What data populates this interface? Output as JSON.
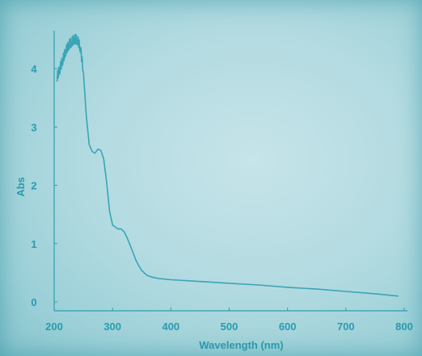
{
  "chart_data": {
    "type": "line",
    "title": "",
    "xlabel": "Wavelength (nm)",
    "ylabel": "Abs",
    "xlim": [
      200,
      800
    ],
    "ylim": [
      0,
      4.6
    ],
    "xticks": [
      200,
      300,
      400,
      500,
      600,
      700,
      800
    ],
    "yticks": [
      0,
      1,
      2,
      3,
      4
    ],
    "grid": false,
    "series": [
      {
        "x": [
          205,
          210,
          215,
          220,
          225,
          230,
          235,
          240,
          245,
          250,
          255,
          260,
          265,
          270,
          275,
          280,
          285,
          290,
          295,
          300,
          305,
          310,
          315,
          320,
          325,
          330,
          335,
          340,
          345,
          350,
          355,
          360,
          370,
          380,
          400,
          450,
          500,
          550,
          600,
          650,
          700,
          750,
          790
        ],
        "y": [
          3.85,
          4.0,
          4.15,
          4.3,
          4.4,
          4.45,
          4.5,
          4.48,
          4.35,
          3.95,
          3.2,
          2.7,
          2.58,
          2.55,
          2.62,
          2.6,
          2.45,
          2.05,
          1.55,
          1.32,
          1.28,
          1.25,
          1.25,
          1.2,
          1.1,
          0.98,
          0.85,
          0.72,
          0.62,
          0.54,
          0.49,
          0.45,
          0.42,
          0.4,
          0.38,
          0.35,
          0.32,
          0.29,
          0.25,
          0.22,
          0.18,
          0.14,
          0.1
        ]
      }
    ]
  },
  "colors": {
    "line": "#3aa5b6",
    "axis": "#2d9fb0",
    "text": "#2a9bb0"
  }
}
